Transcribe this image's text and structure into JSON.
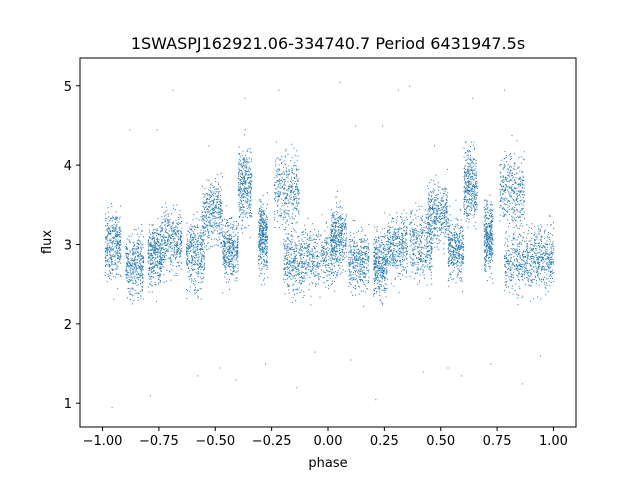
{
  "chart_data": {
    "type": "scatter",
    "title": "1SWASPJ162921.06-334740.7 Period 6431947.5s",
    "xlabel": "phase",
    "ylabel": "flux",
    "xlim": [
      -1.1,
      1.1
    ],
    "ylim": [
      0.7,
      5.35
    ],
    "xticks": [
      -1.0,
      -0.75,
      -0.5,
      -0.25,
      0.0,
      0.25,
      0.5,
      0.75,
      1.0
    ],
    "xtick_labels": [
      "−1.00",
      "−0.75",
      "−0.50",
      "−0.25",
      "0.00",
      "0.25",
      "0.50",
      "0.75",
      "1.00"
    ],
    "yticks": [
      1,
      2,
      3,
      4,
      5
    ],
    "ytick_labels": [
      "1",
      "2",
      "3",
      "4",
      "5"
    ],
    "grid": false,
    "marker_color": "#1f77b4",
    "series": [
      {
        "clusters": [
          {
            "x": [
              -0.99,
              -0.92
            ],
            "y": 3.0,
            "spread": 0.35
          },
          {
            "x": [
              -0.9,
              -0.82
            ],
            "y": 2.75,
            "spread": 0.3
          },
          {
            "x": [
              -0.8,
              -0.74
            ],
            "y": 2.9,
            "spread": 0.3
          },
          {
            "x": [
              -0.74,
              -0.65
            ],
            "y": 3.05,
            "spread": 0.3
          },
          {
            "x": [
              -0.63,
              -0.55
            ],
            "y": 2.9,
            "spread": 0.35
          },
          {
            "x": [
              -0.56,
              -0.47
            ],
            "y": 3.4,
            "spread": 0.3
          },
          {
            "x": [
              -0.47,
              -0.4
            ],
            "y": 2.95,
            "spread": 0.3
          },
          {
            "x": [
              -0.4,
              -0.34
            ],
            "y": 3.75,
            "spread": 0.35
          },
          {
            "x": [
              -0.31,
              -0.27
            ],
            "y": 3.1,
            "spread": 0.35
          },
          {
            "x": [
              -0.24,
              -0.13
            ],
            "y": 3.7,
            "spread": 0.35
          },
          {
            "x": [
              -0.2,
              -0.1
            ],
            "y": 2.8,
            "spread": 0.3
          },
          {
            "x": [
              -0.1,
              0.04
            ],
            "y": 2.85,
            "spread": 0.3
          },
          {
            "x": [
              0.01,
              0.08
            ],
            "y": 3.1,
            "spread": 0.3
          },
          {
            "x": [
              0.09,
              0.18
            ],
            "y": 2.8,
            "spread": 0.3
          },
          {
            "x": [
              0.2,
              0.26
            ],
            "y": 2.75,
            "spread": 0.3
          },
          {
            "x": [
              0.26,
              0.35
            ],
            "y": 3.0,
            "spread": 0.3
          },
          {
            "x": [
              0.36,
              0.46
            ],
            "y": 3.0,
            "spread": 0.35
          },
          {
            "x": [
              0.44,
              0.53
            ],
            "y": 3.4,
            "spread": 0.3
          },
          {
            "x": [
              0.53,
              0.6
            ],
            "y": 2.95,
            "spread": 0.3
          },
          {
            "x": [
              0.6,
              0.66
            ],
            "y": 3.75,
            "spread": 0.35
          },
          {
            "x": [
              0.69,
              0.73
            ],
            "y": 3.1,
            "spread": 0.35
          },
          {
            "x": [
              0.76,
              0.87
            ],
            "y": 3.7,
            "spread": 0.35
          },
          {
            "x": [
              0.78,
              0.9
            ],
            "y": 2.8,
            "spread": 0.3
          },
          {
            "x": [
              0.9,
              1.0
            ],
            "y": 2.85,
            "spread": 0.3
          }
        ],
        "outliers": [
          [
            -0.96,
            0.95
          ],
          [
            -0.79,
            1.1
          ],
          [
            -0.76,
            4.45
          ],
          [
            -0.69,
            4.95
          ],
          [
            -0.53,
            4.25
          ],
          [
            -0.48,
            1.45
          ],
          [
            -0.41,
            1.3
          ],
          [
            -0.37,
            4.85
          ],
          [
            -0.22,
            4.95
          ],
          [
            -0.14,
            1.2
          ],
          [
            -0.06,
            1.65
          ],
          [
            0.05,
            5.05
          ],
          [
            0.1,
            1.55
          ],
          [
            0.21,
            1.05
          ],
          [
            0.24,
            4.5
          ],
          [
            0.31,
            4.95
          ],
          [
            0.47,
            4.25
          ],
          [
            0.53,
            1.45
          ],
          [
            0.59,
            1.35
          ],
          [
            0.64,
            4.85
          ],
          [
            0.78,
            4.95
          ],
          [
            0.86,
            1.25
          ],
          [
            0.94,
            1.6
          ],
          [
            -0.28,
            1.5
          ],
          [
            0.72,
            1.5
          ],
          [
            -0.58,
            1.35
          ],
          [
            0.42,
            1.4
          ],
          [
            -0.88,
            4.45
          ],
          [
            0.12,
            4.5
          ],
          [
            0.36,
            5.0
          ]
        ]
      }
    ]
  }
}
